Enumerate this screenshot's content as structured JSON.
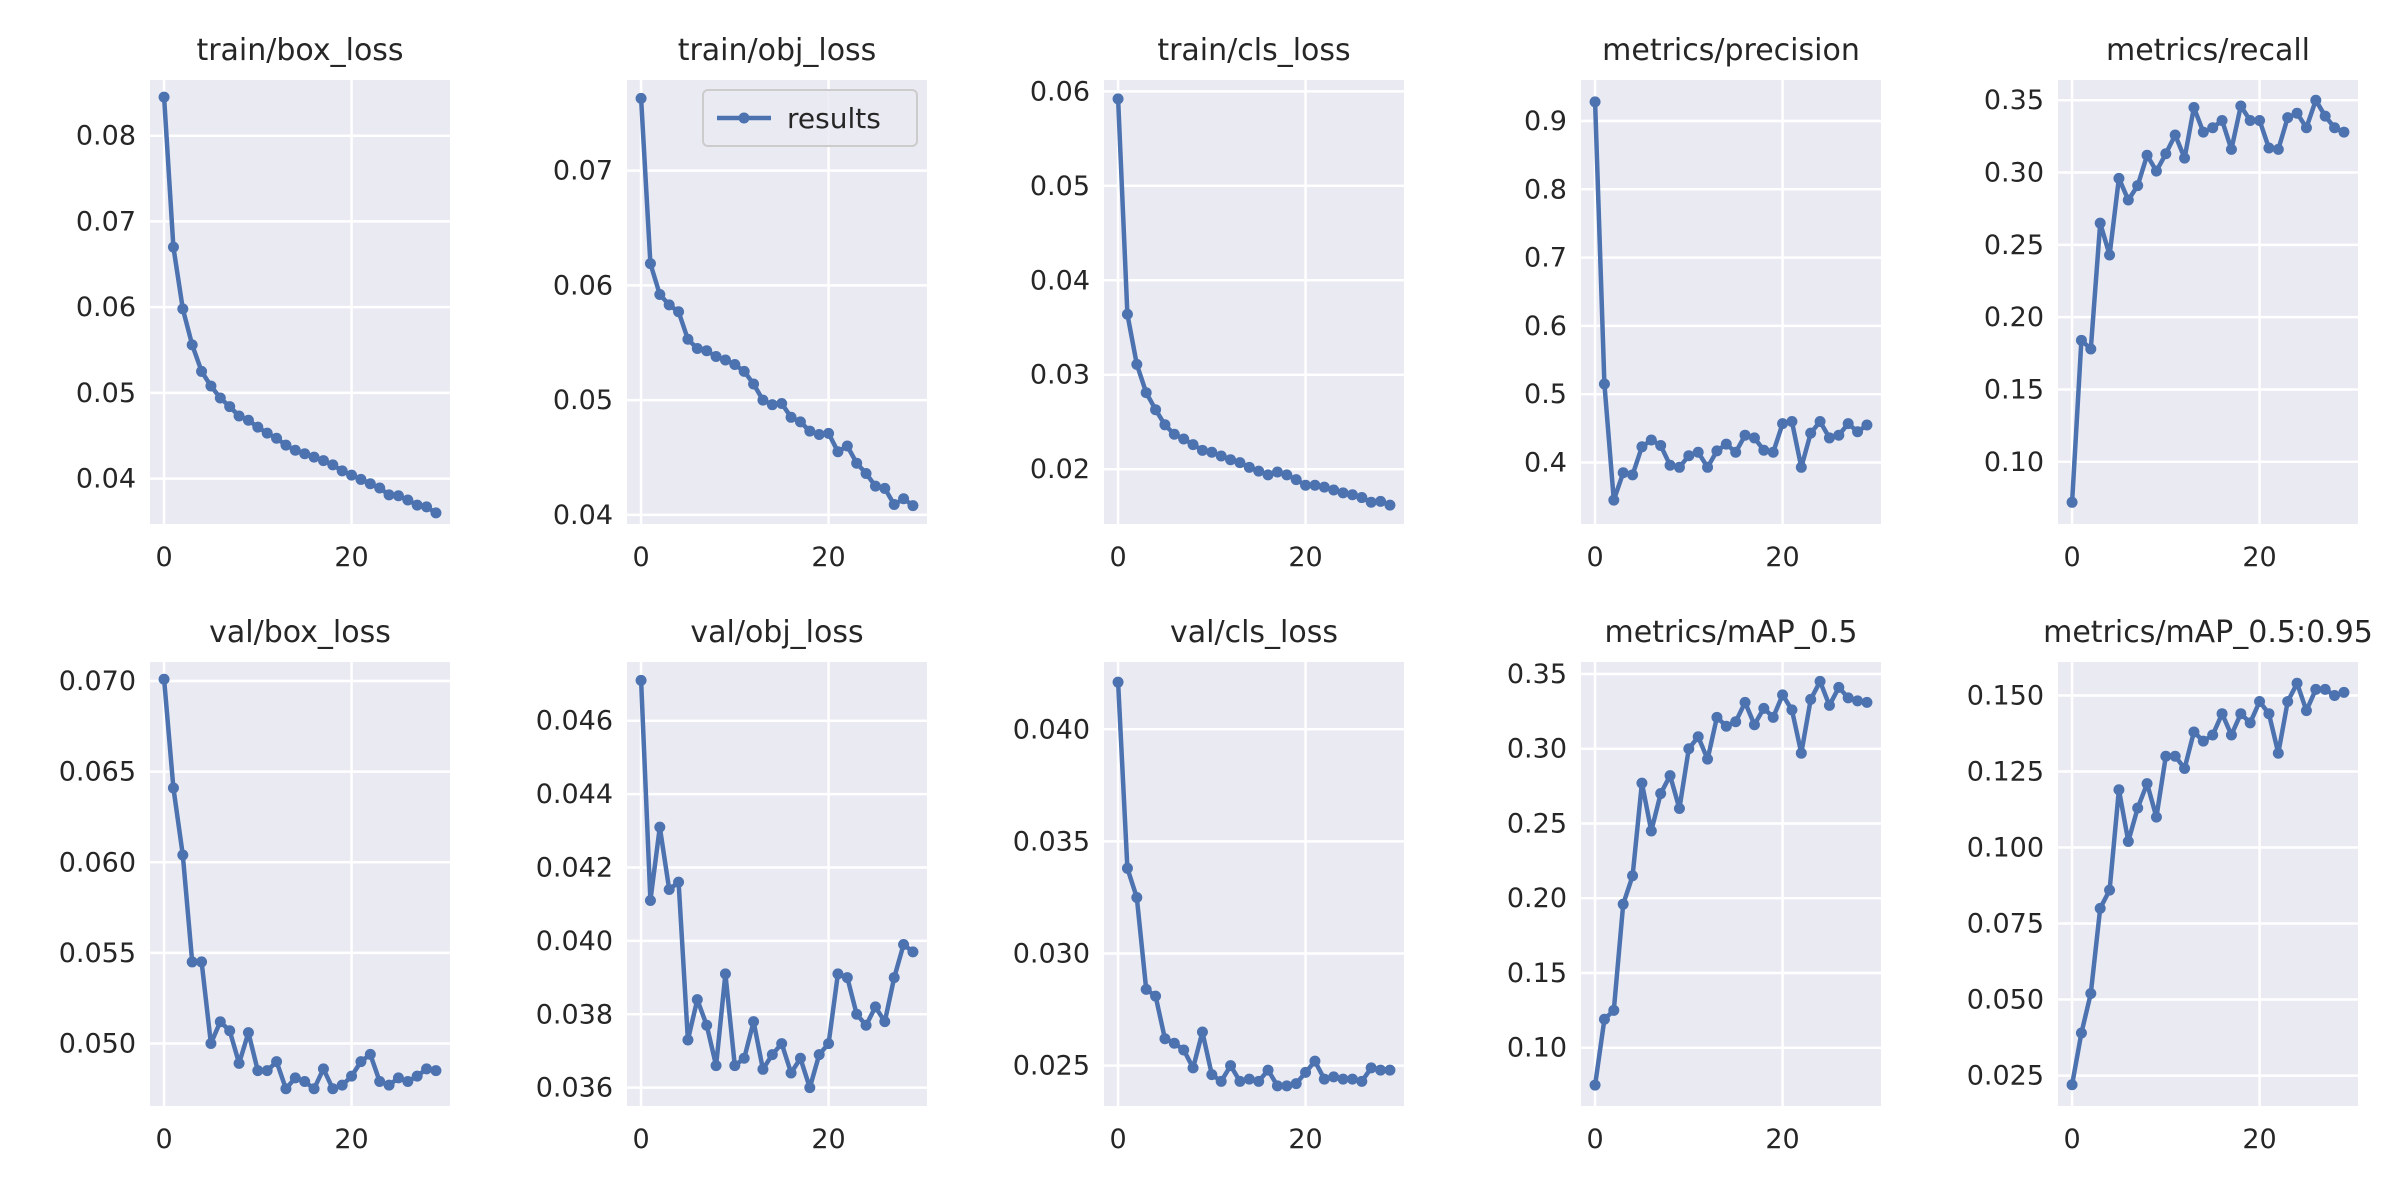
{
  "colors": {
    "line": "#4c72b0",
    "panel_bg": "#eaeaf2",
    "grid": "#ffffff",
    "text": "#262626"
  },
  "legend": {
    "label": "results",
    "panel": "train/obj_loss",
    "placement": "upper-right"
  },
  "chart_data": [
    {
      "type": "line",
      "title": "train/box_loss",
      "x": [
        0,
        1,
        2,
        3,
        4,
        5,
        6,
        7,
        8,
        9,
        10,
        11,
        12,
        13,
        14,
        15,
        16,
        17,
        18,
        19,
        20,
        21,
        22,
        23,
        24,
        25,
        26,
        27,
        28,
        29
      ],
      "series": [
        {
          "name": "results",
          "values": [
            0.0845,
            0.067,
            0.0598,
            0.0556,
            0.0525,
            0.0508,
            0.0494,
            0.0484,
            0.0473,
            0.0468,
            0.046,
            0.0453,
            0.0447,
            0.0439,
            0.0433,
            0.0429,
            0.0425,
            0.0421,
            0.0416,
            0.0409,
            0.0404,
            0.0399,
            0.0394,
            0.0389,
            0.0381,
            0.038,
            0.0375,
            0.0369,
            0.0367,
            0.036
          ]
        }
      ],
      "xlim": [
        -1.5,
        30.5
      ],
      "ylim": [
        0.0347,
        0.0865
      ],
      "xticks": [
        0,
        20
      ],
      "xtick_labels": [
        "0",
        "20"
      ],
      "yticks": [
        0.04,
        0.05,
        0.06,
        0.07,
        0.08
      ],
      "ytick_labels": [
        "0.04",
        "0.05",
        "0.06",
        "0.07",
        "0.08"
      ],
      "grid": true
    },
    {
      "type": "line",
      "title": "train/obj_loss",
      "x": [
        0,
        1,
        2,
        3,
        4,
        5,
        6,
        7,
        8,
        9,
        10,
        11,
        12,
        13,
        14,
        15,
        16,
        17,
        18,
        19,
        20,
        21,
        22,
        23,
        24,
        25,
        26,
        27,
        28,
        29
      ],
      "series": [
        {
          "name": "results",
          "values": [
            0.0763,
            0.0619,
            0.0592,
            0.0583,
            0.0577,
            0.0553,
            0.0545,
            0.0543,
            0.0538,
            0.0535,
            0.0531,
            0.0525,
            0.0514,
            0.05,
            0.0496,
            0.0497,
            0.0485,
            0.0481,
            0.0473,
            0.047,
            0.0471,
            0.0455,
            0.046,
            0.0445,
            0.0436,
            0.0425,
            0.0423,
            0.0409,
            0.0414,
            0.0408
          ]
        }
      ],
      "xlim": [
        -1.5,
        30.5
      ],
      "ylim": [
        0.0392,
        0.0779
      ],
      "xticks": [
        0,
        20
      ],
      "xtick_labels": [
        "0",
        "20"
      ],
      "yticks": [
        0.04,
        0.05,
        0.06,
        0.07
      ],
      "ytick_labels": [
        "0.04",
        "0.05",
        "0.06",
        "0.07"
      ],
      "grid": true
    },
    {
      "type": "line",
      "title": "train/cls_loss",
      "x": [
        0,
        1,
        2,
        3,
        4,
        5,
        6,
        7,
        8,
        9,
        10,
        11,
        12,
        13,
        14,
        15,
        16,
        17,
        18,
        19,
        20,
        21,
        22,
        23,
        24,
        25,
        26,
        27,
        28,
        29
      ],
      "series": [
        {
          "name": "results",
          "values": [
            0.0592,
            0.0364,
            0.0311,
            0.0281,
            0.0263,
            0.0247,
            0.0237,
            0.0232,
            0.0226,
            0.022,
            0.0218,
            0.0214,
            0.021,
            0.0207,
            0.0202,
            0.0198,
            0.0194,
            0.0197,
            0.0194,
            0.0189,
            0.0183,
            0.0183,
            0.0181,
            0.0178,
            0.0175,
            0.0173,
            0.017,
            0.0165,
            0.0166,
            0.0162
          ]
        }
      ],
      "xlim": [
        -1.5,
        30.5
      ],
      "ylim": [
        0.0142,
        0.0612
      ],
      "xticks": [
        0,
        20
      ],
      "xtick_labels": [
        "0",
        "20"
      ],
      "yticks": [
        0.02,
        0.03,
        0.04,
        0.05,
        0.06
      ],
      "ytick_labels": [
        "0.02",
        "0.03",
        "0.04",
        "0.05",
        "0.06"
      ],
      "grid": true
    },
    {
      "type": "line",
      "title": "metrics/precision",
      "x": [
        0,
        1,
        2,
        3,
        4,
        5,
        6,
        7,
        8,
        9,
        10,
        11,
        12,
        13,
        14,
        15,
        16,
        17,
        18,
        19,
        20,
        21,
        22,
        23,
        24,
        25,
        26,
        27,
        28,
        29
      ],
      "series": [
        {
          "name": "results",
          "values": [
            0.928,
            0.515,
            0.345,
            0.385,
            0.382,
            0.423,
            0.433,
            0.425,
            0.396,
            0.393,
            0.41,
            0.415,
            0.393,
            0.417,
            0.427,
            0.415,
            0.44,
            0.436,
            0.418,
            0.415,
            0.457,
            0.46,
            0.393,
            0.443,
            0.46,
            0.436,
            0.44,
            0.457,
            0.445,
            0.455
          ]
        }
      ],
      "xlim": [
        -1.5,
        30.5
      ],
      "ylim": [
        0.31,
        0.96
      ],
      "xticks": [
        0,
        20
      ],
      "xtick_labels": [
        "0",
        "20"
      ],
      "yticks": [
        0.4,
        0.5,
        0.6,
        0.7,
        0.8,
        0.9
      ],
      "ytick_labels": [
        "0.4",
        "0.5",
        "0.6",
        "0.7",
        "0.8",
        "0.9"
      ],
      "grid": true
    },
    {
      "type": "line",
      "title": "metrics/recall",
      "x": [
        0,
        1,
        2,
        3,
        4,
        5,
        6,
        7,
        8,
        9,
        10,
        11,
        12,
        13,
        14,
        15,
        16,
        17,
        18,
        19,
        20,
        21,
        22,
        23,
        24,
        25,
        26,
        27,
        28,
        29
      ],
      "series": [
        {
          "name": "results",
          "values": [
            0.072,
            0.184,
            0.178,
            0.265,
            0.243,
            0.296,
            0.281,
            0.291,
            0.312,
            0.301,
            0.313,
            0.326,
            0.31,
            0.345,
            0.328,
            0.331,
            0.336,
            0.316,
            0.346,
            0.336,
            0.336,
            0.317,
            0.316,
            0.338,
            0.341,
            0.331,
            0.35,
            0.339,
            0.331,
            0.328
          ]
        }
      ],
      "xlim": [
        -1.5,
        30.5
      ],
      "ylim": [
        0.057,
        0.364
      ],
      "xticks": [
        0,
        20
      ],
      "xtick_labels": [
        "0",
        "20"
      ],
      "yticks": [
        0.1,
        0.15,
        0.2,
        0.25,
        0.3,
        0.35
      ],
      "ytick_labels": [
        "0.10",
        "0.15",
        "0.20",
        "0.25",
        "0.30",
        "0.35"
      ],
      "grid": true
    },
    {
      "type": "line",
      "title": "val/box_loss",
      "x": [
        0,
        1,
        2,
        3,
        4,
        5,
        6,
        7,
        8,
        9,
        10,
        11,
        12,
        13,
        14,
        15,
        16,
        17,
        18,
        19,
        20,
        21,
        22,
        23,
        24,
        25,
        26,
        27,
        28,
        29
      ],
      "series": [
        {
          "name": "results",
          "values": [
            0.0701,
            0.0641,
            0.0604,
            0.0545,
            0.0545,
            0.05,
            0.0512,
            0.0507,
            0.0489,
            0.0506,
            0.0485,
            0.0485,
            0.049,
            0.0475,
            0.0481,
            0.0479,
            0.0475,
            0.0486,
            0.0475,
            0.0477,
            0.0482,
            0.049,
            0.0494,
            0.0479,
            0.0477,
            0.0481,
            0.0479,
            0.0482,
            0.0486,
            0.0485
          ]
        }
      ],
      "xlim": [
        -1.5,
        30.5
      ],
      "ylim": [
        0.04655,
        0.07105
      ],
      "xticks": [
        0,
        20
      ],
      "xtick_labels": [
        "0",
        "20"
      ],
      "yticks": [
        0.05,
        0.055,
        0.06,
        0.065,
        0.07
      ],
      "ytick_labels": [
        "0.050",
        "0.055",
        "0.060",
        "0.065",
        "0.070"
      ],
      "grid": true
    },
    {
      "type": "line",
      "title": "val/obj_loss",
      "x": [
        0,
        1,
        2,
        3,
        4,
        5,
        6,
        7,
        8,
        9,
        10,
        11,
        12,
        13,
        14,
        15,
        16,
        17,
        18,
        19,
        20,
        21,
        22,
        23,
        24,
        25,
        26,
        27,
        28,
        29
      ],
      "series": [
        {
          "name": "results",
          "values": [
            0.0471,
            0.0411,
            0.0431,
            0.0414,
            0.0416,
            0.0373,
            0.0384,
            0.0377,
            0.0366,
            0.0391,
            0.0366,
            0.0368,
            0.0378,
            0.0365,
            0.0369,
            0.0372,
            0.0364,
            0.0368,
            0.036,
            0.0369,
            0.0372,
            0.0391,
            0.039,
            0.038,
            0.0377,
            0.0382,
            0.0378,
            0.039,
            0.0399,
            0.0397
          ]
        }
      ],
      "xlim": [
        -1.5,
        30.5
      ],
      "ylim": [
        0.0355,
        0.0476
      ],
      "xticks": [
        0,
        20
      ],
      "xtick_labels": [
        "0",
        "20"
      ],
      "yticks": [
        0.036,
        0.038,
        0.04,
        0.042,
        0.044,
        0.046
      ],
      "ytick_labels": [
        "0.036",
        "0.038",
        "0.040",
        "0.042",
        "0.044",
        "0.046"
      ],
      "grid": true
    },
    {
      "type": "line",
      "title": "val/cls_loss",
      "x": [
        0,
        1,
        2,
        3,
        4,
        5,
        6,
        7,
        8,
        9,
        10,
        11,
        12,
        13,
        14,
        15,
        16,
        17,
        18,
        19,
        20,
        21,
        22,
        23,
        24,
        25,
        26,
        27,
        28,
        29
      ],
      "series": [
        {
          "name": "results",
          "values": [
            0.0421,
            0.0338,
            0.0325,
            0.0284,
            0.0281,
            0.0262,
            0.026,
            0.0257,
            0.0249,
            0.0265,
            0.0246,
            0.0243,
            0.025,
            0.0243,
            0.0244,
            0.0243,
            0.0248,
            0.0241,
            0.0241,
            0.0242,
            0.0247,
            0.0252,
            0.0244,
            0.0245,
            0.0244,
            0.0244,
            0.0243,
            0.0249,
            0.0248,
            0.0248
          ]
        }
      ],
      "xlim": [
        -1.5,
        30.5
      ],
      "ylim": [
        0.0232,
        0.043
      ],
      "xticks": [
        0,
        20
      ],
      "xtick_labels": [
        "0",
        "20"
      ],
      "yticks": [
        0.025,
        0.03,
        0.035,
        0.04
      ],
      "ytick_labels": [
        "0.025",
        "0.030",
        "0.035",
        "0.040"
      ],
      "grid": true
    },
    {
      "type": "line",
      "title": "metrics/mAP_0.5",
      "x": [
        0,
        1,
        2,
        3,
        4,
        5,
        6,
        7,
        8,
        9,
        10,
        11,
        12,
        13,
        14,
        15,
        16,
        17,
        18,
        19,
        20,
        21,
        22,
        23,
        24,
        25,
        26,
        27,
        28,
        29
      ],
      "series": [
        {
          "name": "results",
          "values": [
            0.075,
            0.119,
            0.125,
            0.196,
            0.215,
            0.277,
            0.245,
            0.27,
            0.282,
            0.26,
            0.3,
            0.308,
            0.293,
            0.321,
            0.315,
            0.318,
            0.331,
            0.316,
            0.327,
            0.321,
            0.336,
            0.326,
            0.297,
            0.333,
            0.345,
            0.329,
            0.341,
            0.334,
            0.332,
            0.331
          ]
        }
      ],
      "xlim": [
        -1.5,
        30.5
      ],
      "ylim": [
        0.061,
        0.358
      ],
      "xticks": [
        0,
        20
      ],
      "xtick_labels": [
        "0",
        "20"
      ],
      "yticks": [
        0.1,
        0.15,
        0.2,
        0.25,
        0.3,
        0.35
      ],
      "ytick_labels": [
        "0.10",
        "0.15",
        "0.20",
        "0.25",
        "0.30",
        "0.35"
      ],
      "grid": true
    },
    {
      "type": "line",
      "title": "metrics/mAP_0.5:0.95",
      "x": [
        0,
        1,
        2,
        3,
        4,
        5,
        6,
        7,
        8,
        9,
        10,
        11,
        12,
        13,
        14,
        15,
        16,
        17,
        18,
        19,
        20,
        21,
        22,
        23,
        24,
        25,
        26,
        27,
        28,
        29
      ],
      "series": [
        {
          "name": "results",
          "values": [
            0.022,
            0.039,
            0.052,
            0.08,
            0.086,
            0.119,
            0.102,
            0.113,
            0.121,
            0.11,
            0.13,
            0.13,
            0.126,
            0.138,
            0.135,
            0.137,
            0.144,
            0.137,
            0.144,
            0.141,
            0.148,
            0.144,
            0.131,
            0.148,
            0.154,
            0.145,
            0.152,
            0.152,
            0.15,
            0.151
          ]
        }
      ],
      "xlim": [
        -1.5,
        30.5
      ],
      "ylim": [
        0.015,
        0.161
      ],
      "xticks": [
        0,
        20
      ],
      "xtick_labels": [
        "0",
        "20"
      ],
      "yticks": [
        0.025,
        0.05,
        0.075,
        0.1,
        0.125,
        0.15
      ],
      "ytick_labels": [
        "0.025",
        "0.050",
        "0.075",
        "0.100",
        "0.125",
        "0.150"
      ],
      "grid": true
    }
  ]
}
